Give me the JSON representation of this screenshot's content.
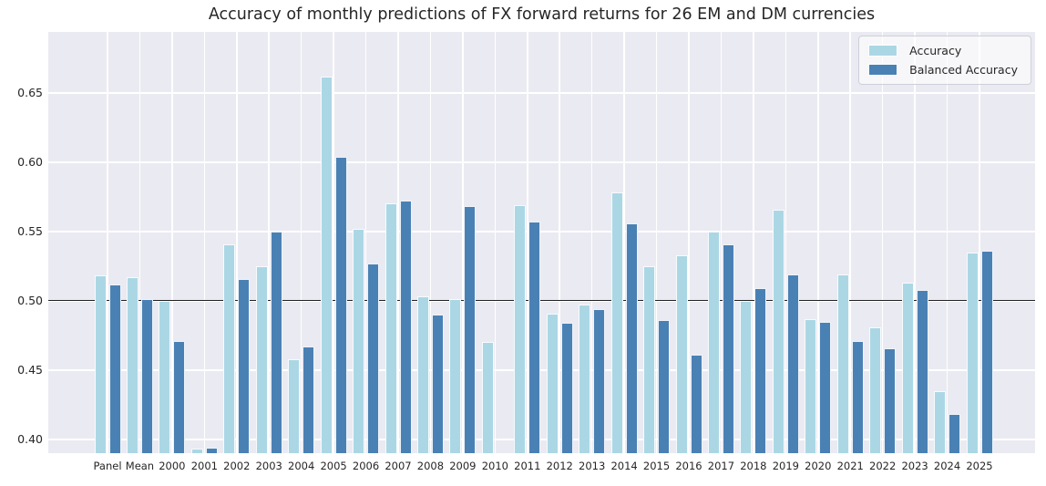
{
  "chart_data": {
    "type": "bar",
    "title": "Accuracy of monthly predictions of FX forward returns for 26 EM and DM currencies",
    "categories": [
      "Panel",
      "Mean",
      "2000",
      "2001",
      "2002",
      "2003",
      "2004",
      "2005",
      "2006",
      "2007",
      "2008",
      "2009",
      "2010",
      "2011",
      "2012",
      "2013",
      "2014",
      "2015",
      "2016",
      "2017",
      "2018",
      "2019",
      "2020",
      "2021",
      "2022",
      "2023",
      "2024",
      "2025"
    ],
    "series": [
      {
        "name": "Accuracy",
        "color": "#abd7e5",
        "values": [
          0.518,
          0.517,
          0.5,
          0.393,
          0.541,
          0.525,
          0.458,
          0.662,
          0.552,
          0.57,
          0.503,
          0.501,
          0.47,
          0.569,
          0.491,
          0.497,
          0.578,
          0.525,
          0.533,
          0.55,
          0.5,
          0.566,
          0.487,
          0.519,
          0.481,
          0.513,
          0.435,
          0.535
        ]
      },
      {
        "name": "Balanced Accuracy",
        "color": "#4a81b4",
        "values": [
          0.512,
          0.501,
          0.471,
          0.394,
          0.516,
          0.55,
          0.467,
          0.604,
          0.527,
          0.572,
          0.49,
          0.568,
          null,
          0.557,
          0.484,
          0.494,
          0.556,
          0.486,
          0.461,
          0.541,
          0.509,
          0.519,
          0.485,
          0.471,
          0.466,
          0.508,
          0.418,
          0.536
        ]
      }
    ],
    "xlabel": "",
    "ylabel": "",
    "ylim": [
      0.39,
      0.694
    ],
    "yticks": [
      0.4,
      0.45,
      0.5,
      0.55,
      0.6,
      0.65
    ],
    "ytick_labels": [
      "0.40",
      "0.45",
      "0.50",
      "0.55",
      "0.60",
      "0.65"
    ],
    "reference_line": 0.5,
    "grid": true,
    "legend_position": "upper right",
    "colors": {
      "plot_background": "#eaeaf2",
      "grid_line": "#ffffff",
      "reference_line": "#222222",
      "text": "#262626"
    }
  }
}
